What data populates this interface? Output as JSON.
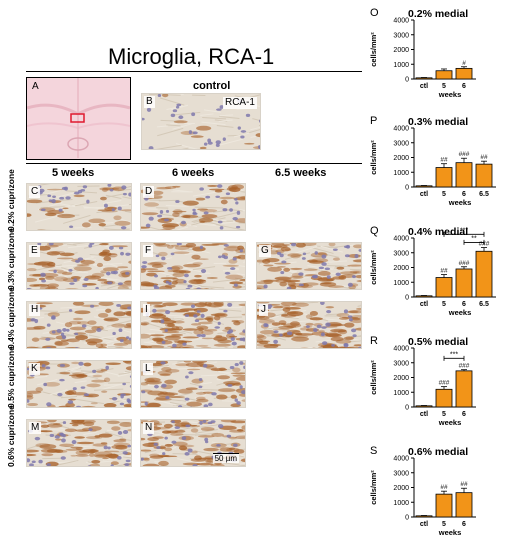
{
  "figure": {
    "title": "Microglia, RCA-1",
    "panel_A_label": "A",
    "panel_B_label": "B",
    "control_label": "control",
    "stain_label": "RCA-1",
    "scale_bar_label": "50 µm",
    "column_headers": [
      "5 weeks",
      "6 weeks",
      "6.5 weeks"
    ],
    "rows": [
      {
        "label": "0.2% cuprizone",
        "panels": [
          "C",
          "D",
          ""
        ]
      },
      {
        "label": "0.3% cuprizone",
        "panels": [
          "E",
          "F",
          "G"
        ]
      },
      {
        "label": "0.4% cuprizone",
        "panels": [
          "H",
          "I",
          "J"
        ]
      },
      {
        "label": "0.5% cuprizone",
        "panels": [
          "K",
          "L",
          ""
        ]
      },
      {
        "label": "0.6% cuprizone",
        "panels": [
          "M",
          "N",
          ""
        ]
      }
    ]
  },
  "chart_data": [
    {
      "panel": "O",
      "type": "bar",
      "title": "0.2% medial",
      "categories": [
        "ctl",
        "5",
        "6"
      ],
      "values": [
        80,
        560,
        720
      ],
      "errors": [
        20,
        120,
        110
      ],
      "annotations": [
        "",
        "",
        "#"
      ],
      "brackets": [],
      "ylabel": "cells/mm²",
      "xlabel": "weeks",
      "ylim": [
        0,
        4000
      ],
      "yticks": [
        0,
        1000,
        2000,
        3000,
        4000
      ]
    },
    {
      "panel": "P",
      "type": "bar",
      "title": "0.3% medial",
      "categories": [
        "ctl",
        "5",
        "6",
        "6.5"
      ],
      "values": [
        80,
        1320,
        1650,
        1550
      ],
      "errors": [
        20,
        260,
        300,
        200
      ],
      "annotations": [
        "",
        "##",
        "###",
        "##"
      ],
      "brackets": [],
      "ylabel": "cells/mm²",
      "xlabel": "weeks",
      "ylim": [
        0,
        4000
      ],
      "yticks": [
        0,
        1000,
        2000,
        3000,
        4000
      ]
    },
    {
      "panel": "Q",
      "type": "bar",
      "title": "0.4% medial",
      "categories": [
        "ctl",
        "5",
        "6",
        "6.5"
      ],
      "values": [
        80,
        1320,
        1900,
        3100
      ],
      "errors": [
        20,
        200,
        150,
        250
      ],
      "annotations": [
        "",
        "##",
        "###",
        "###"
      ],
      "brackets": [
        {
          "from": 1,
          "to": 3,
          "label": "***",
          "y": 4250
        },
        {
          "from": 2,
          "to": 3,
          "label": "**",
          "y": 3700
        }
      ],
      "ylabel": "cells/mm²",
      "xlabel": "weeks",
      "ylim": [
        0,
        4000
      ],
      "yticks": [
        0,
        1000,
        2000,
        3000,
        4000
      ]
    },
    {
      "panel": "R",
      "type": "bar",
      "title": "0.5% medial",
      "categories": [
        "ctl",
        "5",
        "6"
      ],
      "values": [
        80,
        1200,
        2450
      ],
      "errors": [
        20,
        180,
        80
      ],
      "annotations": [
        "",
        "###",
        "###"
      ],
      "brackets": [
        {
          "from": 1,
          "to": 2,
          "label": "***",
          "y": 3300
        }
      ],
      "ylabel": "cells/mm²",
      "xlabel": "weeks",
      "ylim": [
        0,
        4000
      ],
      "yticks": [
        0,
        1000,
        2000,
        3000,
        4000
      ]
    },
    {
      "panel": "S",
      "type": "bar",
      "title": "0.6% medial",
      "categories": [
        "ctl",
        "5",
        "6"
      ],
      "values": [
        80,
        1550,
        1650
      ],
      "errors": [
        20,
        200,
        300
      ],
      "annotations": [
        "",
        "##",
        "##"
      ],
      "brackets": [],
      "ylabel": "cells/mm²",
      "xlabel": "weeks",
      "ylim": [
        0,
        4000
      ],
      "yticks": [
        0,
        1000,
        2000,
        3000,
        4000
      ]
    }
  ],
  "colors": {
    "bar_fill": "#f29418",
    "bar_stroke": "#000000",
    "tissue_bg": "#e6ded2",
    "nuclei": "#7f79ad",
    "stain": "#a8622b",
    "overview_bg": "#f4d5dc",
    "overview_box": "#e0192e"
  }
}
